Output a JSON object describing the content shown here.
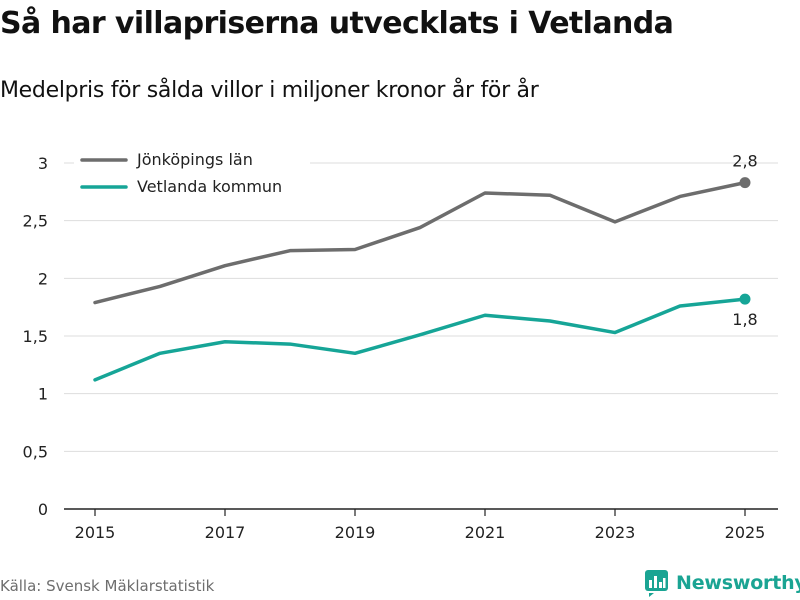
{
  "header": {
    "title": "Så har villapriserna utvecklats i Vetlanda",
    "subtitle": "Medelpris för sålda villor i miljoner kronor år för år"
  },
  "footer": {
    "source": "Källa: Svensk Mäklarstatistik",
    "brand": "Newsworthy"
  },
  "colors": {
    "lan": "#6d6d6d",
    "kommun": "#16a597",
    "grid": "#dddddd",
    "axis": "#222222"
  },
  "chart_data": {
    "type": "line",
    "title": "Så har villapriserna utvecklats i Vetlanda",
    "subtitle": "Medelpris för sålda villor i miljoner kronor år för år",
    "xlabel": "",
    "ylabel": "",
    "x": [
      2015,
      2016,
      2017,
      2018,
      2019,
      2020,
      2021,
      2022,
      2023,
      2024,
      2025
    ],
    "x_ticks": [
      "2015",
      "2017",
      "2019",
      "2021",
      "2023",
      "2025"
    ],
    "y_ticks": [
      "0",
      "0,5",
      "1",
      "1,5",
      "2",
      "2,5",
      "3"
    ],
    "ylim": [
      0,
      3
    ],
    "grid": "horizontal",
    "legend_position": "top-left",
    "series": [
      {
        "name": "Jönköpings län",
        "color_key": "lan",
        "values": [
          1.79,
          1.93,
          2.11,
          2.24,
          2.25,
          2.44,
          2.74,
          2.72,
          2.49,
          2.71,
          2.83
        ],
        "end_label": "2,8"
      },
      {
        "name": "Vetlanda kommun",
        "color_key": "kommun",
        "values": [
          1.12,
          1.35,
          1.45,
          1.43,
          1.35,
          1.51,
          1.68,
          1.63,
          1.53,
          1.76,
          1.82
        ],
        "end_label": "1,8"
      }
    ]
  }
}
